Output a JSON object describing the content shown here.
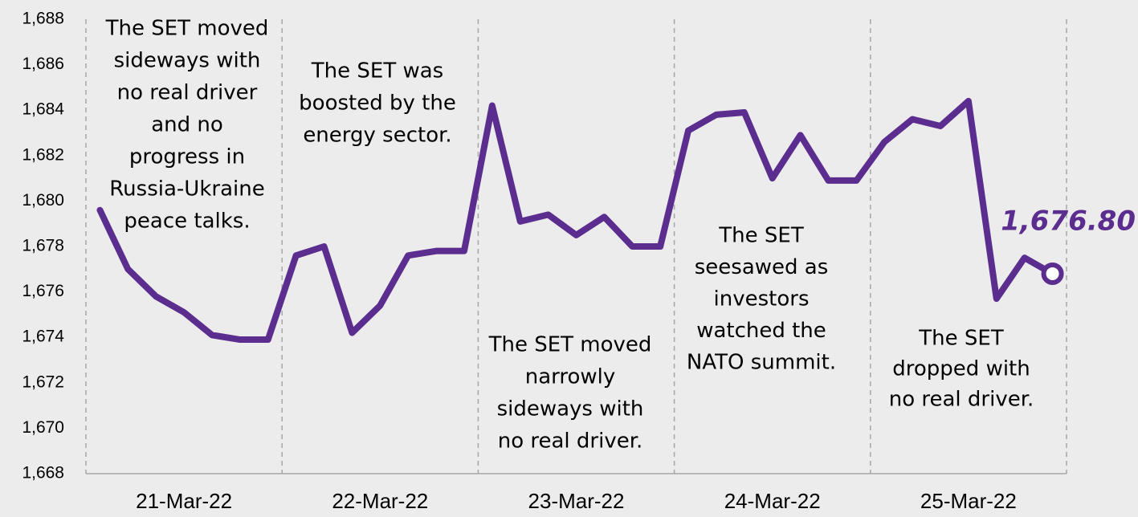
{
  "chart_data": {
    "type": "line",
    "categories": [
      null,
      null,
      null,
      "21-Mar-22",
      null,
      null,
      null,
      null,
      null,
      null,
      "22-Mar-22",
      null,
      null,
      null,
      null,
      null,
      null,
      "23-Mar-22",
      null,
      null,
      null,
      null,
      null,
      null,
      "24-Mar-22",
      null,
      null,
      null,
      null,
      null,
      null,
      "25-Mar-22",
      null,
      null,
      null
    ],
    "series": [
      {
        "color": "#5b2d8e",
        "values": [
          1679.6,
          1677.0,
          1675.8,
          1675.1,
          1674.1,
          1673.9,
          1673.9,
          1677.6,
          1678.0,
          1674.2,
          1675.4,
          1677.6,
          1677.8,
          1677.8,
          1684.2,
          1679.1,
          1679.4,
          1678.5,
          1679.3,
          1678.0,
          1678.0,
          1683.1,
          1683.8,
          1683.9,
          1681.0,
          1682.9,
          1680.9,
          1680.9,
          1682.6,
          1683.6,
          1683.3,
          1684.4,
          1675.7,
          1677.5,
          1676.8
        ],
        "value_labels": [
          null,
          null,
          null,
          null,
          null,
          null,
          null,
          null,
          null,
          null,
          null,
          null,
          null,
          null,
          null,
          null,
          null,
          null,
          null,
          null,
          null,
          null,
          null,
          null,
          null,
          null,
          null,
          null,
          null,
          null,
          null,
          null,
          null,
          null,
          "1,676.80"
        ]
      }
    ],
    "ylim": [
      1668,
      1688
    ],
    "yticks": [
      {
        "value": 1668,
        "label": "1,668"
      },
      {
        "value": 1670,
        "label": "1,670"
      },
      {
        "value": 1672,
        "label": "1,672"
      },
      {
        "value": 1674,
        "label": "1,674"
      },
      {
        "value": 1676,
        "label": "1,676"
      },
      {
        "value": 1678,
        "label": "1,678"
      },
      {
        "value": 1680,
        "label": "1,680"
      },
      {
        "value": 1682,
        "label": "1,682"
      },
      {
        "value": 1684,
        "label": "1,684"
      },
      {
        "value": 1686,
        "label": "1,686"
      },
      {
        "value": 1688,
        "label": "1,688"
      }
    ],
    "annotations": [
      [
        "The SET moved",
        "sideways with",
        "no real driver",
        "and no",
        "progress in",
        "Russia-Ukraine",
        "peace talks."
      ],
      [
        "The SET was",
        "boosted by the",
        "energy sector."
      ],
      [
        "The SET moved",
        "narrowly",
        "sideways with",
        "no real driver."
      ],
      [
        "The SET",
        "seesawed as",
        "investors",
        "watched the",
        "NATO summit."
      ],
      [
        "The SET",
        "dropped with",
        "no real driver."
      ]
    ]
  }
}
